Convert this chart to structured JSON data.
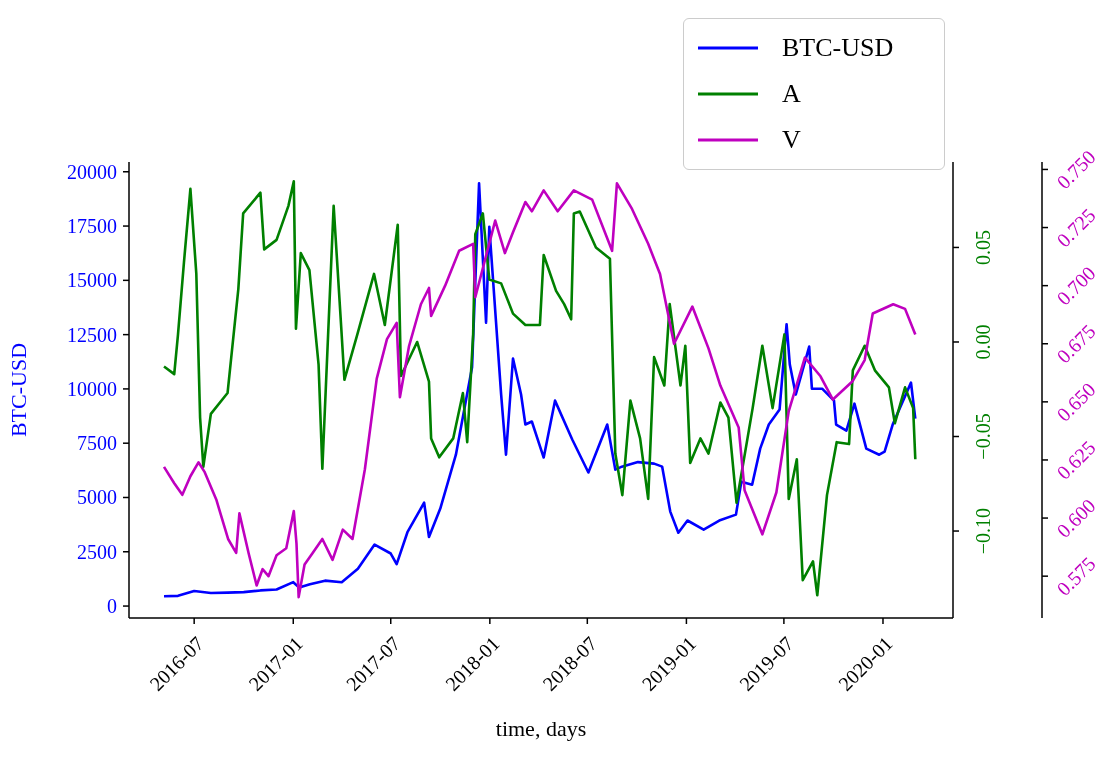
{
  "chart_data": {
    "type": "line",
    "xlabel": "time, days",
    "ylabel": "BTC-USD",
    "legend": "top right",
    "marker": "none",
    "xlim": [
      "2016-03-02",
      "2020-05-10"
    ],
    "xticks": [
      {
        "value": "2016-07-01",
        "label": "2016-07"
      },
      {
        "value": "2017-01-01",
        "label": "2017-01"
      },
      {
        "value": "2017-07-01",
        "label": "2017-07"
      },
      {
        "value": "2018-01-01",
        "label": "2018-01"
      },
      {
        "value": "2018-07-01",
        "label": "2018-07"
      },
      {
        "value": "2019-01-01",
        "label": "2019-01"
      },
      {
        "value": "2019-07-01",
        "label": "2019-07"
      },
      {
        "value": "2020-01-01",
        "label": "2020-01"
      }
    ],
    "ylim": [
      -550,
      20450
    ],
    "yticks": [
      0,
      2500,
      5000,
      7500,
      10000,
      12500,
      15000,
      17500,
      20000
    ],
    "y2lim": [
      -0.146,
      0.0952
    ],
    "y2ticks": [
      {
        "value": -0.1,
        "label": "−0.10"
      },
      {
        "value": -0.05,
        "label": "−0.05"
      },
      {
        "value": 0,
        "label": "0.00"
      },
      0.05
    ],
    "y3lim": [
      0.557,
      0.7532
    ],
    "y3ticks": [
      0.575,
      {
        "value": 0.6,
        "label": "0.600"
      },
      0.625,
      {
        "value": 0.65,
        "label": "0.650"
      },
      0.675,
      {
        "value": 0.7,
        "label": "0.700"
      },
      0.725,
      {
        "value": 0.75,
        "label": "0.750"
      }
    ],
    "series": [
      {
        "name": "BTC-USD",
        "color": "#0000ff",
        "x": [
          "2016-05-06",
          "2016-06-01",
          "2016-07-01",
          "2016-08-01",
          "2016-09-01",
          "2016-10-01",
          "2016-11-01",
          "2016-12-01",
          "2017-01-01",
          "2017-01-12",
          "2017-02-01",
          "2017-03-01",
          "2017-04-01",
          "2017-05-01",
          "2017-06-01",
          "2017-07-01",
          "2017-07-12",
          "2017-08-01",
          "2017-09-01",
          "2017-09-10",
          "2017-10-01",
          "2017-10-30",
          "2017-11-29",
          "2017-12-12",
          "2017-12-25",
          "2017-12-31",
          "2018-01-22",
          "2018-01-31",
          "2018-02-13",
          "2018-02-28",
          "2018-03-08",
          "2018-03-20",
          "2018-04-11",
          "2018-05-02",
          "2018-06-03",
          "2018-07-03",
          "2018-08-07",
          "2018-08-22",
          "2018-09-03",
          "2018-10-03",
          "2018-11-02",
          "2018-11-17",
          "2018-12-02",
          "2018-12-17",
          "2019-01-03",
          "2019-02-02",
          "2019-03-03",
          "2019-04-03",
          "2019-04-13",
          "2019-05-03",
          "2019-05-18",
          "2019-06-03",
          "2019-06-23",
          "2019-07-06",
          "2019-07-12",
          "2019-07-23",
          "2019-08-17",
          "2019-08-22",
          "2019-09-10",
          "2019-10-02",
          "2019-10-06",
          "2019-10-25",
          "2019-11-09",
          "2019-12-01",
          "2019-12-25",
          "2020-01-04",
          "2020-01-19",
          "2020-02-22",
          "2020-03-01"
        ],
        "values": [
          450,
          470,
          690,
          600,
          620,
          640,
          720,
          760,
          1100,
          850,
          1000,
          1170,
          1100,
          1720,
          2830,
          2420,
          1930,
          3400,
          4760,
          3180,
          4490,
          6970,
          11000,
          19470,
          13050,
          17470,
          9740,
          6970,
          11400,
          9740,
          8360,
          8500,
          6840,
          9460,
          7670,
          6150,
          8360,
          6280,
          6420,
          6630,
          6560,
          6420,
          4350,
          3380,
          3940,
          3520,
          3940,
          4210,
          5730,
          5590,
          7250,
          8360,
          9050,
          12980,
          11120,
          9740,
          11950,
          10010,
          10010,
          9460,
          8360,
          8080,
          9320,
          7250,
          6970,
          7110,
          8360,
          10290,
          8630
        ]
      },
      {
        "name": "A",
        "color": "#008000",
        "axis": "y2",
        "x": [
          "2016-05-06",
          "2016-05-25",
          "2016-06-01",
          "2016-06-12",
          "2016-06-24",
          "2016-07-05",
          "2016-07-12",
          "2016-07-18",
          "2016-08-01",
          "2016-09-01",
          "2016-09-21",
          "2016-09-30",
          "2016-11-01",
          "2016-11-08",
          "2016-12-01",
          "2016-12-23",
          "2017-01-02",
          "2017-01-06",
          "2017-01-15",
          "2017-01-31",
          "2017-02-17",
          "2017-02-24",
          "2017-03-17",
          "2017-03-31",
          "2017-04-06",
          "2017-04-30",
          "2017-05-31",
          "2017-06-20",
          "2017-07-14",
          "2017-07-20",
          "2017-08-19",
          "2017-09-10",
          "2017-09-14",
          "2017-09-29",
          "2017-10-25",
          "2017-11-12",
          "2017-11-20",
          "2017-12-01",
          "2017-12-05",
          "2017-12-19",
          "2017-12-31",
          "2018-01-22",
          "2018-02-13",
          "2018-03-08",
          "2018-04-04",
          "2018-04-11",
          "2018-05-04",
          "2018-05-19",
          "2018-06-01",
          "2018-06-06",
          "2018-06-17",
          "2018-07-17",
          "2018-08-12",
          "2018-08-22",
          "2018-09-04",
          "2018-09-19",
          "2018-10-07",
          "2018-10-22",
          "2018-11-02",
          "2018-11-21",
          "2018-12-01",
          "2018-12-21",
          "2018-12-30",
          "2019-01-08",
          "2019-01-27",
          "2019-02-11",
          "2019-03-05",
          "2019-03-20",
          "2019-04-04",
          "2019-05-04",
          "2019-05-22",
          "2019-06-10",
          "2019-07-02",
          "2019-07-10",
          "2019-07-25",
          "2019-08-05",
          "2019-08-24",
          "2019-09-01",
          "2019-09-19",
          "2019-10-07",
          "2019-10-30",
          "2019-11-06",
          "2019-11-28",
          "2019-12-17",
          "2020-01-12",
          "2020-01-23",
          "2020-02-11",
          "2020-02-26",
          "2020-03-01"
        ],
        "values": [
          -0.013,
          -0.017,
          0.004,
          0.042,
          0.081,
          0.036,
          -0.04,
          -0.066,
          -0.038,
          -0.027,
          0.028,
          0.068,
          0.079,
          0.049,
          0.054,
          0.072,
          0.085,
          0.007,
          0.047,
          0.038,
          -0.012,
          -0.067,
          0.072,
          0.008,
          -0.02,
          0.004,
          0.036,
          0.009,
          0.062,
          -0.018,
          0,
          -0.021,
          -0.051,
          -0.061,
          -0.051,
          -0.027,
          -0.053,
          0.004,
          0.057,
          0.068,
          0.033,
          0.031,
          0.015,
          0.009,
          0.009,
          0.046,
          0.027,
          0.02,
          0.012,
          0.068,
          0.069,
          0.05,
          0.044,
          -0.059,
          -0.081,
          -0.031,
          -0.051,
          -0.083,
          -0.008,
          -0.023,
          0.02,
          -0.023,
          -0.002,
          -0.064,
          -0.051,
          -0.059,
          -0.032,
          -0.04,
          -0.085,
          -0.035,
          -0.002,
          -0.035,
          0.004,
          -0.083,
          -0.062,
          -0.126,
          -0.116,
          -0.134,
          -0.081,
          -0.053,
          -0.054,
          -0.015,
          -0.002,
          -0.015,
          -0.024,
          -0.043,
          -0.024,
          -0.035,
          -0.062
        ]
      },
      {
        "name": "V",
        "color": "#bf00bf",
        "axis": "y3",
        "x": [
          "2016-05-06",
          "2016-05-25",
          "2016-06-09",
          "2016-06-24",
          "2016-07-09",
          "2016-07-20",
          "2016-08-11",
          "2016-09-02",
          "2016-09-17",
          "2016-09-23",
          "2016-10-10",
          "2016-10-25",
          "2016-11-05",
          "2016-11-16",
          "2016-12-01",
          "2016-12-19",
          "2017-01-02",
          "2017-01-07",
          "2017-01-11",
          "2017-01-22",
          "2017-02-06",
          "2017-02-24",
          "2017-03-15",
          "2017-04-03",
          "2017-04-21",
          "2017-05-14",
          "2017-06-05",
          "2017-06-24",
          "2017-07-12",
          "2017-07-18",
          "2017-08-04",
          "2017-08-26",
          "2017-09-10",
          "2017-09-14",
          "2017-10-10",
          "2017-11-05",
          "2017-12-01",
          "2017-12-05",
          "2018-01-11",
          "2018-01-29",
          "2018-02-13",
          "2018-03-08",
          "2018-03-20",
          "2018-04-11",
          "2018-05-07",
          "2018-06-06",
          "2018-07-10",
          "2018-08-16",
          "2018-08-25",
          "2018-09-22",
          "2018-10-22",
          "2018-11-13",
          "2018-12-09",
          "2019-01-12",
          "2019-02-11",
          "2019-03-05",
          "2019-04-08",
          "2019-04-19",
          "2019-05-22",
          "2019-06-17",
          "2019-07-10",
          "2019-08-09",
          "2019-09-07",
          "2019-09-30",
          "2019-11-06",
          "2019-11-28",
          "2019-12-13",
          "2020-01-20",
          "2020-02-11",
          "2020-03-01"
        ],
        "values": [
          0.622,
          0.615,
          0.61,
          0.618,
          0.624,
          0.62,
          0.608,
          0.591,
          0.585,
          0.602,
          0.585,
          0.571,
          0.578,
          0.575,
          0.584,
          0.587,
          0.603,
          0.589,
          0.566,
          0.58,
          0.585,
          0.591,
          0.582,
          0.595,
          0.591,
          0.621,
          0.66,
          0.677,
          0.684,
          0.652,
          0.674,
          0.692,
          0.699,
          0.687,
          0.7,
          0.715,
          0.718,
          0.695,
          0.728,
          0.714,
          0.723,
          0.736,
          0.732,
          0.741,
          0.732,
          0.741,
          0.737,
          0.715,
          0.744,
          0.733,
          0.718,
          0.705,
          0.675,
          0.691,
          0.673,
          0.657,
          0.639,
          0.612,
          0.593,
          0.611,
          0.646,
          0.669,
          0.661,
          0.651,
          0.659,
          0.668,
          0.688,
          0.692,
          0.69,
          0.679
        ]
      }
    ]
  }
}
